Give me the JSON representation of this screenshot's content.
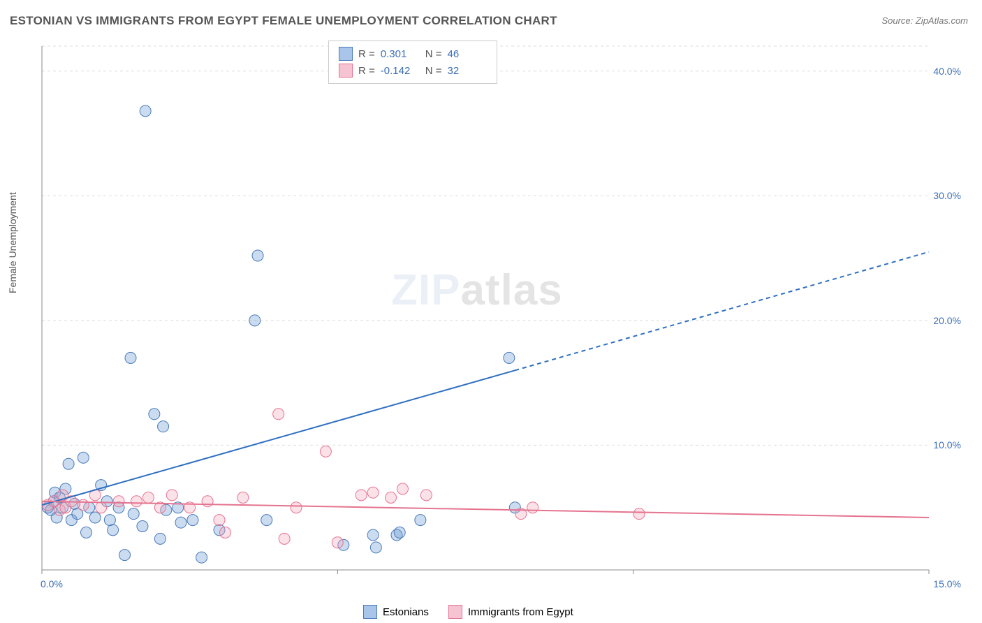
{
  "title": "ESTONIAN VS IMMIGRANTS FROM EGYPT FEMALE UNEMPLOYMENT CORRELATION CHART",
  "source": "Source: ZipAtlas.com",
  "y_axis_label": "Female Unemployment",
  "watermark": {
    "left": "ZIP",
    "right": "atlas"
  },
  "chart": {
    "type": "scatter",
    "background_color": "#ffffff",
    "grid_color": "#dddddd",
    "axis_color": "#888888",
    "xlim": [
      0,
      15
    ],
    "ylim": [
      0,
      42
    ],
    "xticks": [
      0,
      5,
      10,
      15
    ],
    "xtick_labels": [
      "0.0%",
      "",
      "",
      "15.0%"
    ],
    "yticks": [
      10,
      20,
      30,
      40
    ],
    "ytick_labels": [
      "10.0%",
      "20.0%",
      "30.0%",
      "40.0%"
    ],
    "tick_label_color": "#3b6fb5",
    "tick_label_fontsize": 14,
    "marker_radius": 8,
    "marker_fill_opacity": 0.35,
    "series": [
      {
        "name": "Estonians",
        "color": "#6a9ad4",
        "stroke": "#4a7ab8",
        "R": "0.301",
        "N": "46",
        "trend": {
          "x1": 0,
          "y1": 5.2,
          "x2": 8.0,
          "y2": 16.0,
          "x2_dash": 15.0,
          "y2_dash": 25.5,
          "color": "#2f6fc0",
          "width": 2
        },
        "points": [
          [
            0.1,
            5.0
          ],
          [
            0.15,
            4.8
          ],
          [
            0.2,
            5.5
          ],
          [
            0.22,
            6.2
          ],
          [
            0.25,
            4.2
          ],
          [
            0.3,
            5.8
          ],
          [
            0.35,
            5.0
          ],
          [
            0.4,
            6.5
          ],
          [
            0.45,
            8.5
          ],
          [
            0.5,
            4.0
          ],
          [
            0.55,
            5.3
          ],
          [
            0.6,
            4.5
          ],
          [
            0.7,
            9.0
          ],
          [
            0.75,
            3.0
          ],
          [
            0.8,
            5.0
          ],
          [
            0.9,
            4.2
          ],
          [
            1.0,
            6.8
          ],
          [
            1.1,
            5.5
          ],
          [
            1.15,
            4.0
          ],
          [
            1.2,
            3.2
          ],
          [
            1.3,
            5.0
          ],
          [
            1.4,
            1.2
          ],
          [
            1.5,
            17.0
          ],
          [
            1.55,
            4.5
          ],
          [
            1.7,
            3.5
          ],
          [
            1.75,
            36.8
          ],
          [
            1.9,
            12.5
          ],
          [
            2.0,
            2.5
          ],
          [
            2.05,
            11.5
          ],
          [
            2.1,
            4.8
          ],
          [
            2.3,
            5.0
          ],
          [
            2.35,
            3.8
          ],
          [
            2.55,
            4.0
          ],
          [
            2.7,
            1.0
          ],
          [
            3.0,
            3.2
          ],
          [
            3.6,
            20.0
          ],
          [
            3.65,
            25.2
          ],
          [
            3.8,
            4.0
          ],
          [
            5.1,
            2.0
          ],
          [
            5.6,
            2.8
          ],
          [
            5.65,
            1.8
          ],
          [
            6.0,
            2.8
          ],
          [
            6.05,
            3.0
          ],
          [
            6.4,
            4.0
          ],
          [
            7.9,
            17.0
          ],
          [
            8.0,
            5.0
          ]
        ]
      },
      {
        "name": "Immigrants from Egypt",
        "color": "#f4a8bd",
        "stroke": "#e5738f",
        "R": "-0.142",
        "N": "32",
        "trend": {
          "x1": 0,
          "y1": 5.5,
          "x2": 15.0,
          "y2": 4.2,
          "color": "#e5738f",
          "width": 2
        },
        "points": [
          [
            0.1,
            5.2
          ],
          [
            0.2,
            5.5
          ],
          [
            0.3,
            4.8
          ],
          [
            0.35,
            6.0
          ],
          [
            0.4,
            5.0
          ],
          [
            0.5,
            5.5
          ],
          [
            0.7,
            5.2
          ],
          [
            0.9,
            6.0
          ],
          [
            1.0,
            5.0
          ],
          [
            1.3,
            5.5
          ],
          [
            1.6,
            5.5
          ],
          [
            1.8,
            5.8
          ],
          [
            2.0,
            5.0
          ],
          [
            2.2,
            6.0
          ],
          [
            2.5,
            5.0
          ],
          [
            2.8,
            5.5
          ],
          [
            3.0,
            4.0
          ],
          [
            3.1,
            3.0
          ],
          [
            3.4,
            5.8
          ],
          [
            4.0,
            12.5
          ],
          [
            4.1,
            2.5
          ],
          [
            4.3,
            5.0
          ],
          [
            4.8,
            9.5
          ],
          [
            5.0,
            2.2
          ],
          [
            5.4,
            6.0
          ],
          [
            5.6,
            6.2
          ],
          [
            5.9,
            5.8
          ],
          [
            6.1,
            6.5
          ],
          [
            6.5,
            6.0
          ],
          [
            8.1,
            4.5
          ],
          [
            8.3,
            5.0
          ],
          [
            10.1,
            4.5
          ]
        ]
      }
    ]
  },
  "legend_bottom": [
    {
      "label": "Estonians",
      "swatch_fill": "#a9c6ea",
      "swatch_stroke": "#4a7ab8"
    },
    {
      "label": "Immigrants from Egypt",
      "swatch_fill": "#f6c3d2",
      "swatch_stroke": "#e5738f"
    }
  ],
  "legend_top": [
    {
      "swatch_fill": "#a9c6ea",
      "swatch_stroke": "#4a7ab8",
      "R_label": "R =",
      "R": "0.301",
      "N_label": "N =",
      "N": "46"
    },
    {
      "swatch_fill": "#f6c3d2",
      "swatch_stroke": "#e5738f",
      "R_label": "R =",
      "R": "-0.142",
      "N_label": "N =",
      "N": "32"
    }
  ]
}
